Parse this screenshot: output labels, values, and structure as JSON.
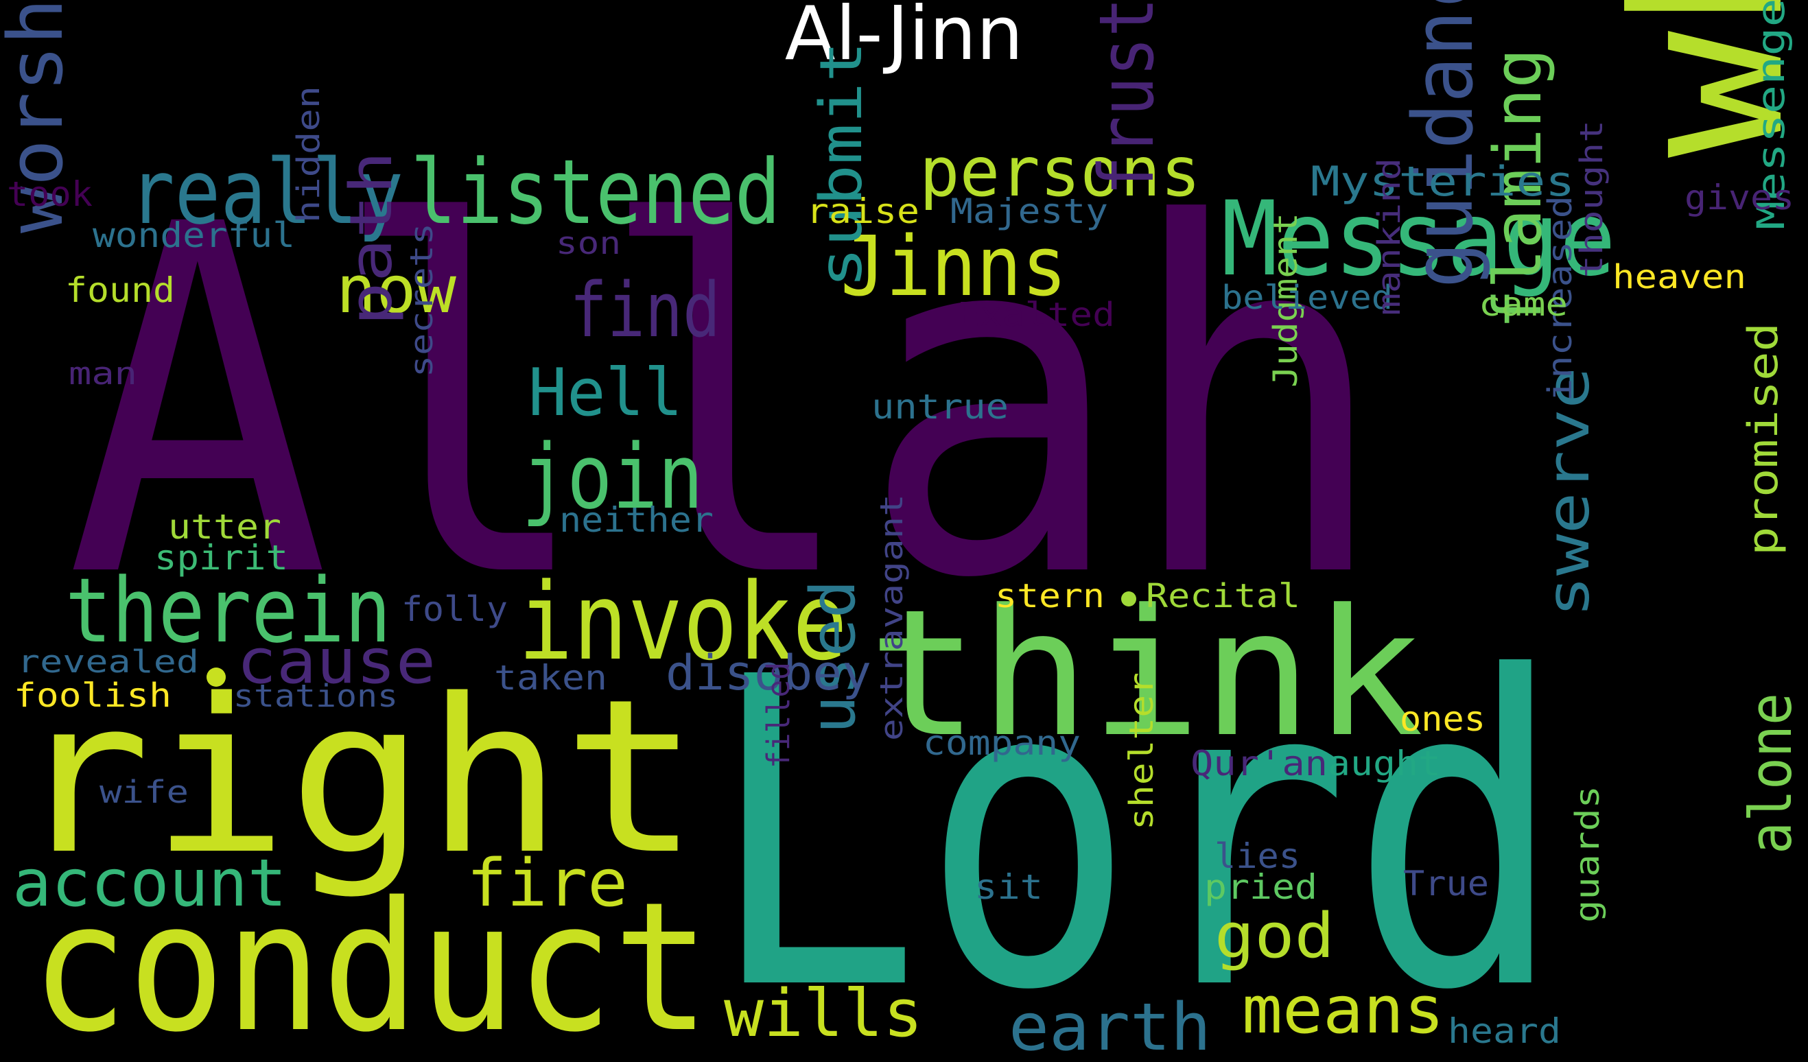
{
  "title": "Al-Jinn",
  "words": [
    {
      "text": "Allah",
      "color": "#440154"
    },
    {
      "text": "Lord",
      "color": "#20A386"
    },
    {
      "text": "right",
      "color": "#C8E020"
    },
    {
      "text": "whether",
      "color": "#B5DE2B"
    },
    {
      "text": "think",
      "color": "#6CCE59"
    },
    {
      "text": "conduct",
      "color": "#C8E020"
    },
    {
      "text": "Message",
      "color": "#35B779"
    },
    {
      "text": "listened",
      "color": "#4AC16D"
    },
    {
      "text": "really",
      "color": "#2A788E"
    },
    {
      "text": "invoke",
      "color": "#BDDF26"
    },
    {
      "text": "therein",
      "color": "#4AC16D"
    },
    {
      "text": "Jinns",
      "color": "#C8E020"
    },
    {
      "text": "persons",
      "color": "#B5DE2B"
    },
    {
      "text": "join",
      "color": "#4AC16D"
    },
    {
      "text": "guidance",
      "color": "#3B528B"
    },
    {
      "text": "worship",
      "color": "#3B528B"
    },
    {
      "text": "frustrate",
      "color": "#482475"
    },
    {
      "text": "flaming",
      "color": "#6CCE59"
    },
    {
      "text": "account",
      "color": "#35B779"
    },
    {
      "text": "find",
      "color": "#482878"
    },
    {
      "text": "Hell",
      "color": "#21918C"
    },
    {
      "text": "now",
      "color": "#BDDF26"
    },
    {
      "text": "path",
      "color": "#482878"
    },
    {
      "text": "fire",
      "color": "#C8E020"
    },
    {
      "text": "submit",
      "color": "#21918C"
    },
    {
      "text": "cause",
      "color": "#482878"
    },
    {
      "text": "used",
      "color": "#2A788E"
    },
    {
      "text": "earth",
      "color": "#2C728E"
    },
    {
      "text": "means",
      "color": "#C8E020"
    },
    {
      "text": "wills",
      "color": "#C8E020"
    },
    {
      "text": "god",
      "color": "#B5DE2B"
    },
    {
      "text": "swerve",
      "color": "#2A788E"
    },
    {
      "text": "alone",
      "color": "#7AD151"
    },
    {
      "text": "disobey",
      "color": "#3B528B"
    },
    {
      "text": "Mysteries",
      "color": "#2A788E"
    },
    {
      "text": "Messenger",
      "color": "#22A884"
    },
    {
      "text": "promised",
      "color": "#A0DA39"
    },
    {
      "text": "increased",
      "color": "#3B528B"
    },
    {
      "text": "Judgment",
      "color": "#7AD151"
    },
    {
      "text": "took",
      "color": "#440154"
    },
    {
      "text": "wonderful",
      "color": "#2C728E"
    },
    {
      "text": "found",
      "color": "#B5DE2B"
    },
    {
      "text": "man",
      "color": "#482475"
    },
    {
      "text": "hidden",
      "color": "#3E4A89"
    },
    {
      "text": "raise",
      "color": "#D8E219"
    },
    {
      "text": "Majesty",
      "color": "#31688E"
    },
    {
      "text": "son",
      "color": "#482878"
    },
    {
      "text": "Exalted",
      "color": "#440154"
    },
    {
      "text": "believed",
      "color": "#2C728E"
    },
    {
      "text": "came",
      "color": "#7AD151"
    },
    {
      "text": "heaven",
      "color": "#FDE725"
    },
    {
      "text": "gives",
      "color": "#482475"
    },
    {
      "text": "thought",
      "color": "#46327E"
    },
    {
      "text": "mankind",
      "color": "#472D7B"
    },
    {
      "text": "secrets",
      "color": "#3E4A89"
    },
    {
      "text": "untrue",
      "color": "#2C728E"
    },
    {
      "text": "neither",
      "color": "#2C728E"
    },
    {
      "text": "utter",
      "color": "#A0DA39"
    },
    {
      "text": "spirit",
      "color": "#3CBB75"
    },
    {
      "text": "folly",
      "color": "#3E4A89"
    },
    {
      "text": "stern",
      "color": "#FDE725"
    },
    {
      "text": "Recital",
      "color": "#A0DA39"
    },
    {
      "text": "revealed",
      "color": "#31688E"
    },
    {
      "text": "foolish",
      "color": "#FDE725"
    },
    {
      "text": "stations",
      "color": "#3B528B"
    },
    {
      "text": "taken",
      "color": "#3B528B"
    },
    {
      "text": "company",
      "color": "#31688E"
    },
    {
      "text": "Qur'an",
      "color": "#482878"
    },
    {
      "text": "aught",
      "color": "#22A884"
    },
    {
      "text": "ones",
      "color": "#FDE725"
    },
    {
      "text": "wife",
      "color": "#3B528B"
    },
    {
      "text": "filled",
      "color": "#482878"
    },
    {
      "text": "extravagant",
      "color": "#414487"
    },
    {
      "text": "shelter",
      "color": "#B5DE2B"
    },
    {
      "text": "lies",
      "color": "#3B528B"
    },
    {
      "text": "pried",
      "color": "#5EC962"
    },
    {
      "text": "sit",
      "color": "#2C728E"
    },
    {
      "text": "True",
      "color": "#3E4A89"
    },
    {
      "text": "guards",
      "color": "#6CCE59"
    },
    {
      "text": "heard",
      "color": "#2A788E"
    }
  ]
}
